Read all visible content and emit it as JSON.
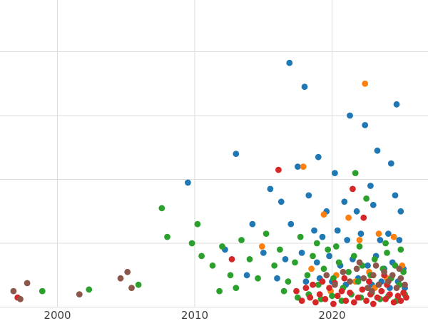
{
  "figure": {
    "background_color": "#ffffff",
    "grid_color": "#dddddd",
    "tick_label_color": "#3d3d3d"
  },
  "chart_data": {
    "type": "scatter",
    "title": "",
    "xlabel": "",
    "ylabel": "",
    "xlim": [
      1995.8,
      2027.0
    ],
    "ylim": [
      0,
      96
    ],
    "x_ticks": [
      2000,
      2010,
      2020
    ],
    "x_tick_labels": [
      "2000",
      "2010",
      "2020"
    ],
    "y_gridlines": [
      0,
      20,
      40,
      60,
      80
    ],
    "grid": true,
    "legend": "none",
    "marker": "circle",
    "marker_radius_px": 4.4,
    "series": [
      {
        "name": "series-blue",
        "color": "#1f77b4",
        "points": [
          [
            2009.5,
            39
          ],
          [
            2013.0,
            48
          ],
          [
            2016.9,
            76.5
          ],
          [
            2018.0,
            69
          ],
          [
            2024.7,
            63.5
          ],
          [
            2021.3,
            60
          ],
          [
            2022.4,
            57
          ],
          [
            2017.5,
            44
          ],
          [
            2019.0,
            47
          ],
          [
            2020.2,
            42
          ],
          [
            2023.3,
            49
          ],
          [
            2024.3,
            45
          ],
          [
            2022.8,
            38
          ],
          [
            2018.3,
            35
          ],
          [
            2015.5,
            37
          ],
          [
            2016.3,
            33
          ],
          [
            2019.6,
            30
          ],
          [
            2020.9,
            33
          ],
          [
            2021.8,
            30
          ],
          [
            2023.0,
            32
          ],
          [
            2024.6,
            35
          ],
          [
            2025.0,
            30
          ],
          [
            2014.2,
            26
          ],
          [
            2017.0,
            26
          ],
          [
            2018.7,
            24
          ],
          [
            2019.3,
            22
          ],
          [
            2020.4,
            24
          ],
          [
            2021.1,
            21
          ],
          [
            2022.1,
            23
          ],
          [
            2023.5,
            21
          ],
          [
            2024.1,
            23
          ],
          [
            2024.9,
            21
          ],
          [
            2012.2,
            18
          ],
          [
            2015.0,
            17
          ],
          [
            2016.6,
            15
          ],
          [
            2017.8,
            17
          ],
          [
            2018.9,
            14
          ],
          [
            2019.8,
            16
          ],
          [
            2020.6,
            13
          ],
          [
            2021.5,
            15
          ],
          [
            2022.6,
            13
          ],
          [
            2023.2,
            16
          ],
          [
            2023.8,
            12
          ],
          [
            2024.4,
            14
          ],
          [
            2025.2,
            12
          ],
          [
            2013.8,
            10
          ],
          [
            2016.0,
            9
          ],
          [
            2018.1,
            8
          ],
          [
            2019.1,
            9
          ],
          [
            2020.0,
            8
          ],
          [
            2021.0,
            7
          ],
          [
            2021.9,
            9
          ],
          [
            2022.9,
            7
          ],
          [
            2023.6,
            8
          ],
          [
            2024.2,
            6
          ],
          [
            2024.8,
            8
          ],
          [
            2025.3,
            6
          ]
        ]
      },
      {
        "name": "series-orange",
        "color": "#ff7f0e",
        "points": [
          [
            2022.4,
            70
          ],
          [
            2017.9,
            44
          ],
          [
            2014.9,
            19
          ],
          [
            2019.4,
            29
          ],
          [
            2021.2,
            28
          ],
          [
            2022.0,
            21
          ],
          [
            2023.4,
            23
          ],
          [
            2024.5,
            22
          ],
          [
            2018.5,
            12
          ],
          [
            2020.3,
            10
          ],
          [
            2021.7,
            8
          ],
          [
            2022.7,
            11
          ],
          [
            2023.1,
            6
          ],
          [
            2024.0,
            9
          ],
          [
            2025.1,
            13
          ],
          [
            2019.9,
            5
          ]
        ]
      },
      {
        "name": "series-green",
        "color": "#2ca02c",
        "points": [
          [
            1998.9,
            5
          ],
          [
            2002.3,
            5.5
          ],
          [
            2005.9,
            7
          ],
          [
            2007.6,
            31
          ],
          [
            2008.0,
            22
          ],
          [
            2009.8,
            20
          ],
          [
            2010.2,
            26
          ],
          [
            2010.5,
            16
          ],
          [
            2011.3,
            13
          ],
          [
            2011.8,
            5
          ],
          [
            2012.0,
            19
          ],
          [
            2012.6,
            10
          ],
          [
            2013.0,
            6
          ],
          [
            2013.4,
            21
          ],
          [
            2014.0,
            15
          ],
          [
            2014.6,
            9
          ],
          [
            2015.2,
            23
          ],
          [
            2015.8,
            13
          ],
          [
            2016.2,
            18
          ],
          [
            2016.5,
            5
          ],
          [
            2016.8,
            8
          ],
          [
            2017.3,
            14
          ],
          [
            2017.7,
            22
          ],
          [
            2018.2,
            10
          ],
          [
            2018.6,
            16
          ],
          [
            2018.9,
            20
          ],
          [
            2019.0,
            7
          ],
          [
            2019.4,
            12
          ],
          [
            2019.7,
            18
          ],
          [
            2020.1,
            9
          ],
          [
            2020.3,
            19
          ],
          [
            2020.5,
            14
          ],
          [
            2020.8,
            6
          ],
          [
            2021.2,
            11
          ],
          [
            2021.6,
            16
          ],
          [
            2021.7,
            42
          ],
          [
            2021.9,
            8
          ],
          [
            2022.0,
            19
          ],
          [
            2022.2,
            13
          ],
          [
            2022.5,
            34
          ],
          [
            2022.8,
            10
          ],
          [
            2023.1,
            15
          ],
          [
            2023.4,
            7
          ],
          [
            2023.7,
            12
          ],
          [
            2023.9,
            20
          ],
          [
            2024.0,
            17
          ],
          [
            2024.3,
            9
          ],
          [
            2024.6,
            13
          ],
          [
            2024.9,
            7
          ],
          [
            2025.0,
            18
          ],
          [
            2025.2,
            11
          ],
          [
            2017.5,
            3
          ],
          [
            2018.3,
            4
          ],
          [
            2019.2,
            2.5
          ],
          [
            2020.0,
            3.5
          ],
          [
            2020.7,
            2
          ],
          [
            2021.4,
            4
          ],
          [
            2022.1,
            3
          ],
          [
            2022.9,
            4.5
          ],
          [
            2023.5,
            2.5
          ],
          [
            2024.1,
            3.5
          ],
          [
            2024.7,
            2
          ],
          [
            2025.3,
            4
          ]
        ]
      },
      {
        "name": "series-red",
        "color": "#d62728",
        "points": [
          [
            1997.1,
            3
          ],
          [
            2012.7,
            15
          ],
          [
            2016.1,
            43
          ],
          [
            2021.5,
            37
          ],
          [
            2022.3,
            28
          ],
          [
            2019.3,
            8
          ],
          [
            2020.9,
            9
          ],
          [
            2022.7,
            8
          ],
          [
            2023.8,
            10
          ],
          [
            2017.4,
            5
          ],
          [
            2017.8,
            2
          ],
          [
            2018.1,
            6
          ],
          [
            2018.4,
            3
          ],
          [
            2018.8,
            1.5
          ],
          [
            2019.1,
            4
          ],
          [
            2019.5,
            2.5
          ],
          [
            2019.8,
            6
          ],
          [
            2020.1,
            1
          ],
          [
            2020.4,
            3.5
          ],
          [
            2020.7,
            5
          ],
          [
            2021.0,
            2
          ],
          [
            2021.3,
            4.5
          ],
          [
            2021.6,
            1.5
          ],
          [
            2021.9,
            3
          ],
          [
            2022.2,
            5.5
          ],
          [
            2022.5,
            2
          ],
          [
            2022.8,
            4
          ],
          [
            2023.0,
            1
          ],
          [
            2023.3,
            3
          ],
          [
            2023.6,
            5
          ],
          [
            2023.9,
            2.5
          ],
          [
            2024.2,
            4
          ],
          [
            2024.5,
            1.5
          ],
          [
            2024.8,
            3.5
          ],
          [
            2025.0,
            2
          ],
          [
            2025.2,
            4.5
          ],
          [
            2025.4,
            3
          ],
          [
            2024.0,
            7
          ],
          [
            2018.6,
            7
          ],
          [
            2020.2,
            7.5
          ]
        ]
      },
      {
        "name": "series-brown",
        "color": "#8c564b",
        "points": [
          [
            1996.8,
            5
          ],
          [
            1997.3,
            2.5
          ],
          [
            1997.8,
            7.5
          ],
          [
            2001.6,
            4
          ],
          [
            2004.6,
            9
          ],
          [
            2005.1,
            11
          ],
          [
            2005.4,
            6
          ],
          [
            2019.6,
            10
          ],
          [
            2020.2,
            7
          ],
          [
            2020.8,
            11
          ],
          [
            2021.3,
            8
          ],
          [
            2021.8,
            12
          ],
          [
            2022.0,
            14
          ],
          [
            2022.3,
            9
          ],
          [
            2022.6,
            6
          ],
          [
            2023.0,
            10
          ],
          [
            2023.2,
            13
          ],
          [
            2023.4,
            7
          ],
          [
            2023.8,
            11
          ],
          [
            2024.1,
            8
          ],
          [
            2024.4,
            10
          ],
          [
            2024.7,
            6
          ],
          [
            2025.0,
            9
          ],
          [
            2025.3,
            7
          ],
          [
            2022.9,
            5
          ],
          [
            2024.9,
            12
          ]
        ]
      }
    ]
  }
}
